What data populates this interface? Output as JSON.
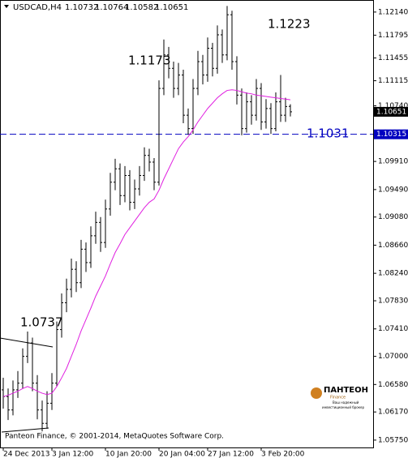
{
  "chart_data": {
    "type": "ohlc",
    "symbol": "USDCAD,H4",
    "color": "#000000",
    "categories": [
      "24 Dec 2013",
      null,
      null,
      null,
      null,
      null,
      null,
      null,
      null,
      null,
      "3 Jan 12:00",
      null,
      null,
      null,
      null,
      null,
      null,
      null,
      null,
      null,
      null,
      "10 Jan 20:00",
      null,
      null,
      null,
      null,
      null,
      null,
      null,
      null,
      null,
      null,
      "20 Jan 04:00",
      null,
      null,
      null,
      null,
      null,
      null,
      null,
      null,
      null,
      "27 Jan 12:00",
      null,
      null,
      null,
      null,
      null,
      null,
      null,
      null,
      null,
      null,
      "3 Feb 20:00",
      null,
      null,
      null,
      null,
      null,
      null
    ],
    "open": [
      1.065,
      1.064,
      1.062,
      1.065,
      1.066,
      1.07,
      1.072,
      1.066,
      1.062,
      1.06,
      1.063,
      1.066,
      1.074,
      1.078,
      1.08,
      1.083,
      1.081,
      1.086,
      1.084,
      1.088,
      1.09,
      1.087,
      1.092,
      1.096,
      1.098,
      1.094,
      1.097,
      1.093,
      1.095,
      1.097,
      1.1,
      1.099,
      1.096,
      1.11,
      1.115,
      1.113,
      1.11,
      1.112,
      1.106,
      1.104,
      1.11,
      1.114,
      1.112,
      1.116,
      1.113,
      1.118,
      1.115,
      1.121,
      1.114,
      1.109,
      1.104,
      1.108,
      1.106,
      1.11,
      1.105,
      1.107,
      1.104,
      1.108,
      1.106,
      1.10732
    ],
    "high": [
      1.0668,
      1.0652,
      1.0664,
      1.0678,
      1.0712,
      1.0737,
      1.0728,
      1.0672,
      1.0634,
      1.0648,
      1.0675,
      1.0752,
      1.0794,
      1.0816,
      1.0846,
      1.0842,
      1.0874,
      1.087,
      1.0894,
      1.0916,
      1.0908,
      1.0934,
      1.0974,
      1.0995,
      1.0988,
      1.0984,
      1.0978,
      1.0964,
      1.0984,
      1.1012,
      1.101,
      1.0996,
      1.1112,
      1.1173,
      1.1162,
      1.114,
      1.1138,
      1.1128,
      1.107,
      1.1114,
      1.1156,
      1.115,
      1.1176,
      1.1168,
      1.1194,
      1.1188,
      1.1223,
      1.1216,
      1.1148,
      1.11,
      1.1094,
      1.109,
      1.1114,
      1.1108,
      1.1084,
      1.1078,
      1.1094,
      1.112,
      1.1086,
      1.10764
    ],
    "low": [
      1.0622,
      1.0605,
      1.0612,
      1.0638,
      1.0652,
      1.069,
      1.0648,
      1.0606,
      1.0588,
      1.0592,
      1.062,
      1.0655,
      1.0728,
      1.0766,
      1.0788,
      1.0796,
      1.0802,
      1.0826,
      1.0832,
      1.0868,
      1.0856,
      1.0862,
      1.091,
      1.0948,
      1.0926,
      1.093,
      1.0918,
      1.092,
      1.094,
      1.0962,
      1.0976,
      1.0948,
      1.0955,
      1.109,
      1.1115,
      1.1086,
      1.109,
      1.1048,
      1.1031,
      1.1032,
      1.109,
      1.1106,
      1.111,
      1.1118,
      1.1122,
      1.1138,
      1.1142,
      1.1128,
      1.1076,
      1.103,
      1.1034,
      1.1046,
      1.1052,
      1.1038,
      1.104,
      1.1032,
      1.1036,
      1.105,
      1.105,
      1.10582
    ],
    "close": [
      1.064,
      1.062,
      1.065,
      1.066,
      1.07,
      1.072,
      1.066,
      1.062,
      1.06,
      1.063,
      1.066,
      1.074,
      1.078,
      1.08,
      1.083,
      1.081,
      1.086,
      1.084,
      1.088,
      1.09,
      1.087,
      1.092,
      1.096,
      1.098,
      1.094,
      1.097,
      1.093,
      1.095,
      1.097,
      1.1,
      1.099,
      1.096,
      1.11,
      1.115,
      1.113,
      1.11,
      1.112,
      1.106,
      1.104,
      1.11,
      1.114,
      1.112,
      1.116,
      1.113,
      1.118,
      1.115,
      1.121,
      1.114,
      1.109,
      1.104,
      1.108,
      1.106,
      1.11,
      1.105,
      1.107,
      1.104,
      1.108,
      1.106,
      1.1073,
      1.10651
    ],
    "moving_average": {
      "color": "#e020e0",
      "values": [
        1.064,
        1.0642,
        1.0645,
        1.0648,
        1.0652,
        1.0655,
        1.0652,
        1.0648,
        1.0645,
        1.0643,
        1.0645,
        1.0655,
        1.0668,
        1.0682,
        1.07,
        1.0718,
        1.0738,
        1.0755,
        1.0772,
        1.079,
        1.0805,
        1.082,
        1.0838,
        1.0855,
        1.0868,
        1.0882,
        1.0892,
        1.0902,
        1.0912,
        1.0922,
        1.093,
        1.0935,
        1.0948,
        1.0965,
        1.098,
        1.0995,
        1.101,
        1.102,
        1.1028,
        1.1038,
        1.105,
        1.106,
        1.107,
        1.1078,
        1.1086,
        1.1092,
        1.1097,
        1.1098,
        1.1097,
        1.1095,
        1.1093,
        1.1092,
        1.109,
        1.1089,
        1.1088,
        1.1087,
        1.1086,
        1.1085,
        1.1084,
        1.1083
      ]
    },
    "hline": {
      "value": 1.10315,
      "color": "#0000c0"
    },
    "ylim": [
      1.0564,
      1.1232
    ],
    "yticks": [
      {
        "value": 1.1214,
        "label": "1.12140"
      },
      {
        "value": 1.11795,
        "label": "1.11795"
      },
      {
        "value": 1.11455,
        "label": "1.11455"
      },
      {
        "value": 1.11115,
        "label": "1.11115"
      },
      {
        "value": 1.1074,
        "label": "1.10740"
      },
      {
        "value": 1.0991,
        "label": "1.09910"
      },
      {
        "value": 1.0949,
        "label": "1.09490"
      },
      {
        "value": 1.0908,
        "label": "1.09080"
      },
      {
        "value": 1.0866,
        "label": "1.08660"
      },
      {
        "value": 1.0824,
        "label": "1.08240"
      },
      {
        "value": 1.0783,
        "label": "1.07830"
      },
      {
        "value": 1.0741,
        "label": "1.07410"
      },
      {
        "value": 1.07,
        "label": "1.07000"
      },
      {
        "value": 1.0658,
        "label": "1.06580"
      },
      {
        "value": 1.0617,
        "label": "1.06170"
      },
      {
        "value": 1.0575,
        "label": "1.05750"
      }
    ],
    "annotations": [
      "1.0737",
      "1.1173",
      "1.1223",
      "1.1031"
    ],
    "footer": "Panteon Finance, © 2001-2014, MetaQuotes Software Corp.",
    "logo": {
      "name": "ПАНТЕОН",
      "sub": "Finance",
      "tagline1": "Ваш надежный",
      "tagline2": "инвестиционный брокер"
    }
  }
}
